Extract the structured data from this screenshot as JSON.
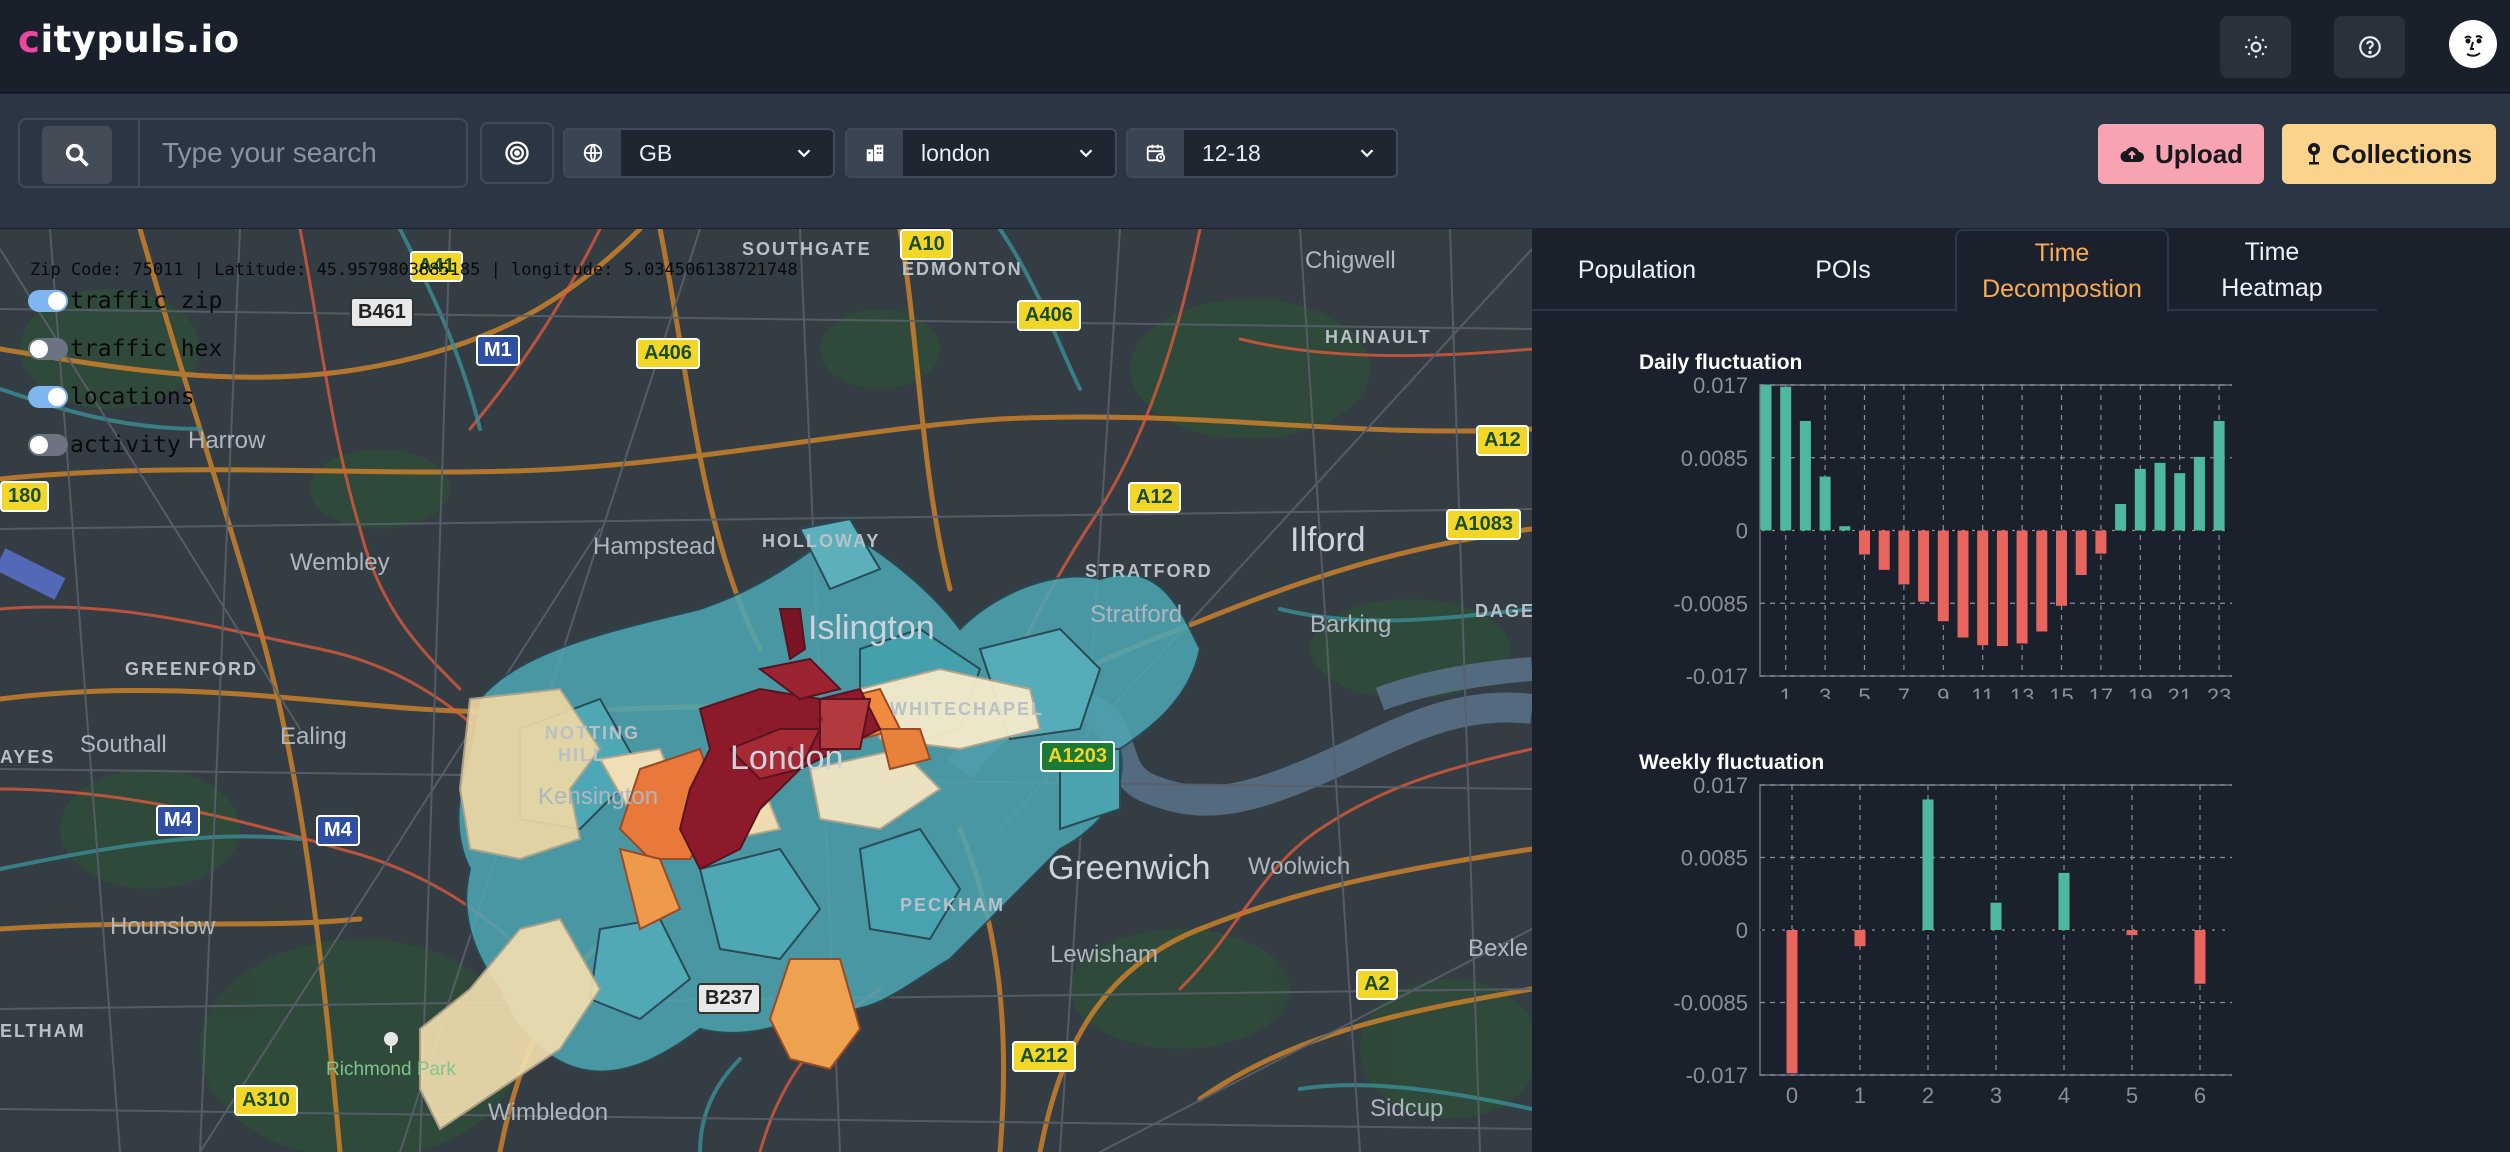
{
  "app": {
    "logo_first": "c",
    "logo_rest": "itypuls.io"
  },
  "header": {
    "buttons": [
      {
        "name": "theme-toggle-button",
        "icon": "sun-icon"
      },
      {
        "name": "help-button",
        "icon": "question-icon"
      }
    ],
    "avatar_icon": "face-avatar-icon"
  },
  "toolbar": {
    "search": {
      "placeholder": "Type your search",
      "value": ""
    },
    "country": {
      "value": "GB",
      "icon": "globe-icon"
    },
    "city": {
      "value": "london",
      "icon": "buildings-icon"
    },
    "time": {
      "value": "12-18",
      "icon": "calendar-clock-icon"
    },
    "upload_label": "Upload",
    "collections_label": "Collections"
  },
  "map": {
    "coords_text": "Zip Code: 75011 | Latitude: 45.9579803885185 | longitude: 5.034506138721748",
    "layers": [
      {
        "label": "traffic zip",
        "on": true
      },
      {
        "label": "traffic hex",
        "on": false
      },
      {
        "label": "locations",
        "on": true
      },
      {
        "label": "activity",
        "on": false
      }
    ],
    "labels": {
      "southgate": "SOUTHGATE",
      "edmonton": "EDMONTON",
      "chigwell": "Chigwell",
      "hainault": "HAINAULT",
      "harrow": "Harrow",
      "hampstead": "Hampstead",
      "holloway": "HOLLOWAY",
      "ilford": "Ilford",
      "wembley": "Wembley",
      "stratford_caps": "STRATFORD",
      "stratford": "Stratford",
      "barking": "Barking",
      "dage": "DAGE",
      "islington": "Islington",
      "greenford": "GREENFORD",
      "ealing": "Ealing",
      "southall": "Southall",
      "ayes": "AYES",
      "notting": "NOTTING",
      "hill": "HILL",
      "kensington": "Kensington",
      "whitechapel": "WHITECHAPEL",
      "london": "London",
      "greenwich": "Greenwich",
      "woolwich": "Woolwich",
      "hounslow": "Hounslow",
      "peckham": "PECKHAM",
      "lewisham": "Lewisham",
      "bexley": "Bexle",
      "eltham": "ELTHAM",
      "richmond": "Richmond Park",
      "wimbledon": "Wimbledon",
      "sidcup": "Sidcup"
    },
    "roads": {
      "a10": "A10",
      "a41": "A41",
      "b461": "B461",
      "m1": "M1",
      "a406": "A406",
      "a12": "A12",
      "a12b": "A12",
      "a1083": "A1083",
      "a180": "180",
      "m4": "M4",
      "m4b": "M4",
      "a1203": "A1203",
      "a2": "A2",
      "b237": "B237",
      "a212": "A212",
      "a310": "A310"
    }
  },
  "tabs": [
    {
      "label": "Population",
      "active": false
    },
    {
      "label": "POIs",
      "active": false
    },
    {
      "label": "Time Decompostion",
      "line1": "Time",
      "line2": "Decompostion",
      "active": true
    },
    {
      "label": "Time Heatmap",
      "line1": "Time",
      "line2": "Heatmap",
      "active": false
    }
  ],
  "colors": {
    "positive": "#4fb99f",
    "negative": "#e8655d",
    "accent": "#f6ad55",
    "upload": "#f7a3b1",
    "collections": "#fbd38d"
  },
  "chart_data": [
    {
      "type": "bar",
      "title": "Daily fluctuation",
      "x": [
        0,
        1,
        2,
        3,
        4,
        5,
        6,
        7,
        8,
        9,
        10,
        11,
        12,
        13,
        14,
        15,
        16,
        17,
        18,
        19,
        20,
        21,
        22,
        23
      ],
      "x_tick_labels": [
        "1",
        "3",
        "5",
        "7",
        "9",
        "11",
        "13",
        "15",
        "17",
        "19",
        "21",
        "23"
      ],
      "values": [
        0.017,
        0.0168,
        0.0128,
        0.0063,
        0.0005,
        -0.0028,
        -0.0046,
        -0.0063,
        -0.0083,
        -0.0106,
        -0.0125,
        -0.0134,
        -0.0135,
        -0.0132,
        -0.0118,
        -0.0088,
        -0.0052,
        -0.0027,
        0.0031,
        0.0072,
        0.0079,
        0.0067,
        0.0086,
        0.0128
      ],
      "y_ticks": [
        "0.017",
        "0.0085",
        "0",
        "-0.0085",
        "-0.017"
      ],
      "ylim": [
        -0.017,
        0.017
      ],
      "grid": true
    },
    {
      "type": "bar",
      "title": "Weekly fluctuation",
      "x": [
        0,
        1,
        2,
        3,
        4,
        5,
        6
      ],
      "x_tick_labels": [
        "0",
        "1",
        "2",
        "3",
        "4",
        "5",
        "6"
      ],
      "values": [
        -0.0168,
        -0.0019,
        0.0153,
        0.0032,
        0.0067,
        -0.0006,
        -0.0063
      ],
      "y_ticks": [
        "0.017",
        "0.0085",
        "0",
        "-0.0085",
        "-0.017"
      ],
      "ylim": [
        -0.017,
        0.017
      ],
      "grid": true
    }
  ]
}
